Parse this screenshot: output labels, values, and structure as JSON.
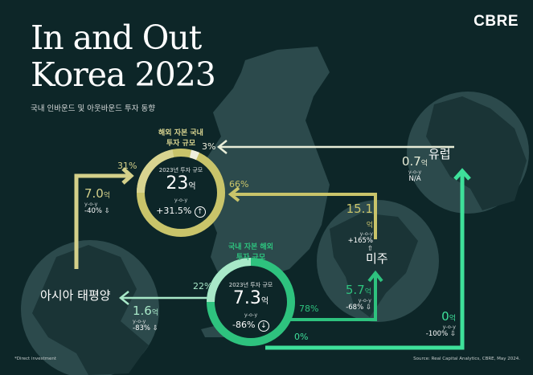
{
  "header": {
    "title_line1": "In and Out",
    "title_line2": "Korea 2023",
    "subtitle": "국내 인바운드 및 아웃바운드 투자 동향",
    "logo": "CBRE"
  },
  "colors": {
    "background": "#0d2628",
    "inbound": "#c9c46a",
    "outbound": "#2ec27e",
    "map": "#2c4a4c",
    "europe_flow": "#e8edd8",
    "asia_outbound": "#a8e8c8"
  },
  "inbound": {
    "caption_line1": "해외 자본 국내",
    "caption_line2": "투자 규모",
    "label": "2023년 투자 규모",
    "amount": "23",
    "unit": "억",
    "yoy": "y-o-y",
    "change": "+31.5%",
    "direction": "up",
    "shares": {
      "europe": "3%",
      "americas": "66%",
      "asia": "31%"
    }
  },
  "outbound": {
    "caption_line1": "국내 자본 해외",
    "caption_line2": "투자 규모",
    "label": "2023년 투자 규모",
    "amount": "7.3",
    "unit": "억",
    "yoy": "y-o-y",
    "change": "-86%",
    "direction": "down",
    "shares": {
      "asia": "22%",
      "americas": "78%",
      "europe": "0%"
    }
  },
  "regions": {
    "europe": {
      "name": "유럽",
      "in_amount": "0.7",
      "unit": "억",
      "in_yoy": "y-o-y",
      "in_change": "N/A",
      "out_amount": "0",
      "out_yoy": "y-o-y",
      "out_change": "-100%"
    },
    "americas": {
      "name": "미주",
      "in_amount": "15.1",
      "unit": "억",
      "in_yoy": "y-o-y",
      "in_change": "+165%",
      "out_amount": "5.7",
      "out_yoy": "y-o-y",
      "out_change": "-68%"
    },
    "asia": {
      "name": "아시아 태평양",
      "in_amount": "7.0",
      "unit": "억",
      "in_yoy": "y-o-y",
      "in_change": "-40%",
      "out_amount": "1.6",
      "out_yoy": "y-o-y",
      "out_change": "-83%"
    }
  },
  "footer": {
    "note": "*Direct investment",
    "source": "Source: Real Capital Analytics, CBRE, May 2024."
  }
}
